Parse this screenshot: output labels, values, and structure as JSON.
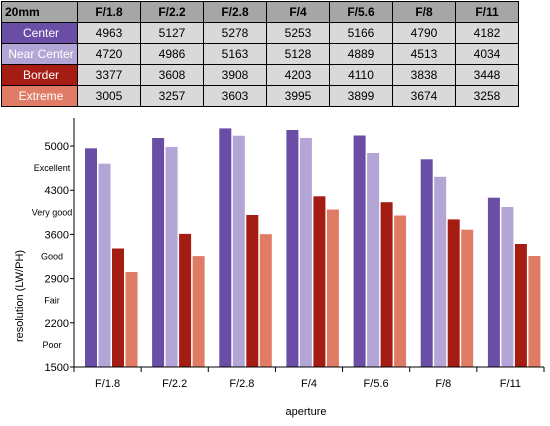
{
  "table": {
    "corner_label": "20mm",
    "headers": [
      "F/1.8",
      "F/2.2",
      "F/2.8",
      "F/4",
      "F/5.6",
      "F/8",
      "F/11"
    ],
    "rows": [
      {
        "label": "Center",
        "values": [
          "4963",
          "5127",
          "5278",
          "5253",
          "5166",
          "4790",
          "4182"
        ]
      },
      {
        "label": "Near Center",
        "values": [
          "4720",
          "4986",
          "5163",
          "5128",
          "4889",
          "4513",
          "4034"
        ]
      },
      {
        "label": "Border",
        "values": [
          "3377",
          "3608",
          "3908",
          "4203",
          "4110",
          "3838",
          "3448"
        ]
      },
      {
        "label": "Extreme",
        "values": [
          "3005",
          "3257",
          "3603",
          "3995",
          "3899",
          "3674",
          "3258"
        ]
      }
    ]
  },
  "chart_data": {
    "type": "bar",
    "categories": [
      "F/1.8",
      "F/2.2",
      "F/2.8",
      "F/4",
      "F/5.6",
      "F/8",
      "F/11"
    ],
    "series": [
      {
        "values": [
          4963,
          5127,
          5278,
          5253,
          5166,
          4790,
          4182
        ],
        "color": "#6a4ea6"
      },
      {
        "values": [
          4720,
          4986,
          5163,
          5128,
          4889,
          4513,
          4034
        ],
        "color": "#b3a6d6"
      },
      {
        "values": [
          3377,
          3608,
          3908,
          4203,
          4110,
          3838,
          3448
        ],
        "color": "#a51c12"
      },
      {
        "values": [
          3005,
          3257,
          3603,
          3995,
          3899,
          3674,
          3258
        ],
        "color": "#e07b66"
      }
    ],
    "ylim": [
      1500,
      5300
    ],
    "yticks": [
      "1500",
      "2200",
      "2900",
      "3600",
      "4300",
      "5000"
    ],
    "quality_labels": [
      {
        "label": "Excellent",
        "y": 4650
      },
      {
        "label": "Very good",
        "y": 3950
      },
      {
        "label": "Good",
        "y": 3250
      },
      {
        "label": "Fair",
        "y": 2550
      },
      {
        "label": "Poor",
        "y": 1850
      }
    ],
    "xlabel": "aperture",
    "ylabel": "resolution (LW/PH)",
    "grid": false,
    "legend": "none"
  }
}
